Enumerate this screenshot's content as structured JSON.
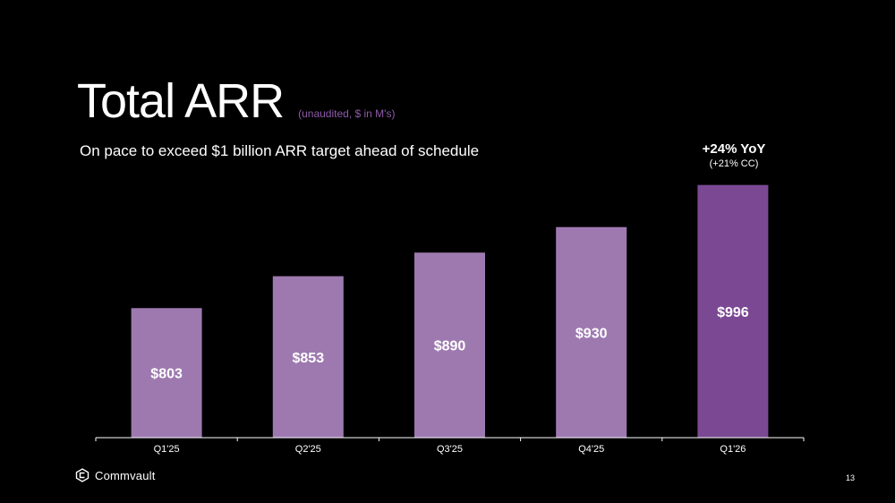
{
  "header": {
    "title": "Total ARR",
    "title_note": "(unaudited, $ in M's)",
    "subtitle": "On pace to exceed $1 billion ARR target ahead of schedule"
  },
  "callout": {
    "main": "+24% YoY",
    "sub": "(+21% CC)"
  },
  "chart_data": {
    "type": "bar",
    "title": "Total ARR",
    "categories": [
      "Q1'25",
      "Q2'25",
      "Q3'25",
      "Q4'25",
      "Q1'26"
    ],
    "values": [
      803,
      853,
      890,
      930,
      996
    ],
    "value_labels": [
      "$803",
      "$853",
      "$890",
      "$930",
      "$996"
    ],
    "xlabel": "",
    "ylabel": "",
    "ylim": [
      600,
      1000
    ],
    "grid": false,
    "legend": "none",
    "colors": {
      "bar": "#9e79b0",
      "highlight_bar": "#7b4993",
      "axis": "#ffffff"
    }
  },
  "footer": {
    "logo_text": "Commvault",
    "logo_icon": "commvault-logo-icon",
    "page_number": "13"
  }
}
